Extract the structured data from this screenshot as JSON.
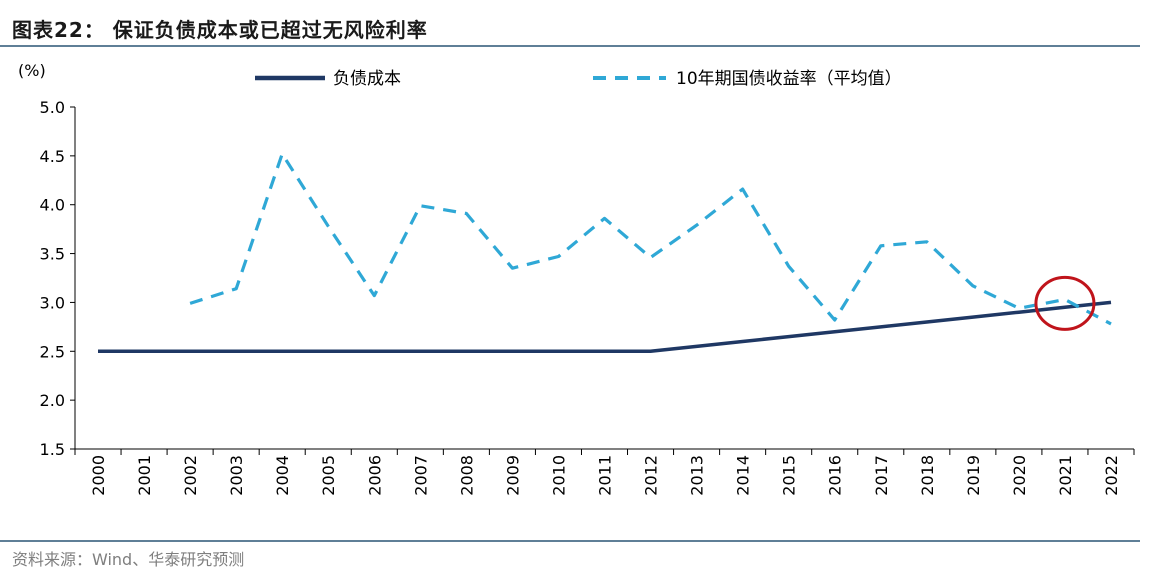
{
  "header": {
    "title": "图表22：  保证负债成本或已超过无风险利率"
  },
  "footer": {
    "source": "资料来源：Wind、华泰研究预测"
  },
  "colors": {
    "cost_line": "#1f3864",
    "yield_line": "#2fa8d6",
    "highlight_circle": "#c0141b",
    "rule": "#5f7f97"
  },
  "chart_data": {
    "type": "line",
    "title": "",
    "xlabel": "",
    "ylabel": "(%)",
    "ylim": [
      1.5,
      5.0
    ],
    "yticks": [
      "5.0",
      "4.5",
      "4.0",
      "3.5",
      "3.0",
      "2.5",
      "2.0",
      "1.5"
    ],
    "ytick_values": [
      5.0,
      4.5,
      4.0,
      3.5,
      3.0,
      2.5,
      2.0,
      1.5
    ],
    "categories": [
      "2000",
      "2001",
      "2002",
      "2003",
      "2004",
      "2005",
      "2006",
      "2007",
      "2008",
      "2009",
      "2010",
      "2011",
      "2012",
      "2013",
      "2014",
      "2015",
      "2016",
      "2017",
      "2018",
      "2019",
      "2020",
      "2021",
      "2022"
    ],
    "grid": false,
    "legend_position": "top",
    "series": [
      {
        "name": "负债成本",
        "style": "solid",
        "values": [
          2.5,
          2.5,
          2.5,
          2.5,
          2.5,
          2.5,
          2.5,
          2.5,
          2.5,
          2.5,
          2.5,
          2.5,
          2.5,
          2.55,
          2.6,
          2.65,
          2.7,
          2.75,
          2.8,
          2.85,
          2.9,
          2.95,
          3.0
        ]
      },
      {
        "name": "10年期国债收益率（平均值）",
        "style": "dashed",
        "values": [
          null,
          null,
          2.99,
          3.14,
          4.52,
          3.78,
          3.07,
          3.99,
          3.91,
          3.35,
          3.47,
          3.86,
          3.46,
          3.79,
          4.16,
          3.37,
          2.82,
          3.58,
          3.62,
          3.17,
          2.94,
          3.03,
          2.78
        ]
      }
    ],
    "annotations": [
      {
        "type": "circle",
        "category": "2021",
        "y": 2.99
      }
    ]
  }
}
